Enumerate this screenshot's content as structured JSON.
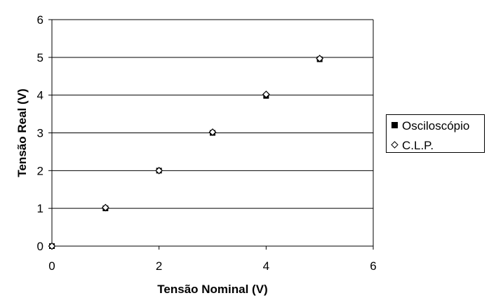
{
  "chart_data": {
    "type": "scatter",
    "xlabel": "Tensão Nominal (V)",
    "ylabel": "Tensão Real (V)",
    "xlim": [
      0,
      6
    ],
    "ylim": [
      0,
      6
    ],
    "x_ticks": [
      0,
      2,
      4,
      6
    ],
    "y_ticks": [
      0,
      1,
      2,
      3,
      4,
      5,
      6
    ],
    "grid": "horizontal",
    "legend_position": "right",
    "series": [
      {
        "name": "Osciloscópio",
        "marker": "filled-square",
        "color": "#000000",
        "x": [
          0,
          1,
          2,
          3,
          4,
          5
        ],
        "y": [
          0,
          1.0,
          2.0,
          3.0,
          3.98,
          4.95
        ]
      },
      {
        "name": "C.L.P.",
        "marker": "hollow-diamond",
        "color": "#000000",
        "x": [
          0,
          1,
          2,
          3,
          4,
          5
        ],
        "y": [
          0,
          1.02,
          2.0,
          3.02,
          4.02,
          4.97
        ]
      }
    ]
  }
}
